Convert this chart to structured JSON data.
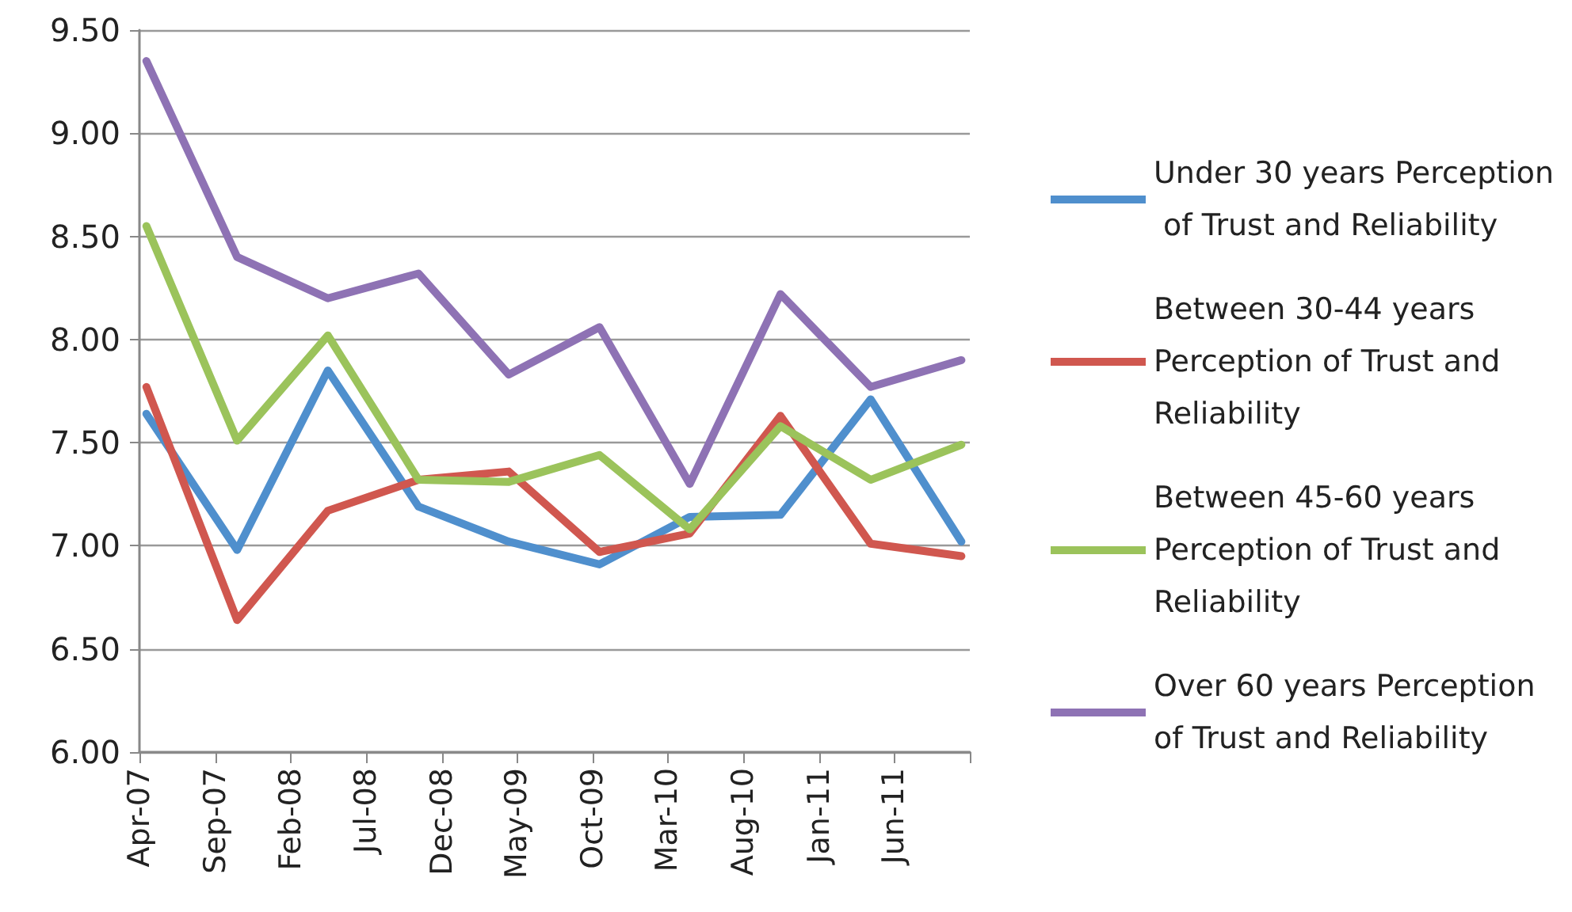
{
  "chart_data": {
    "type": "line",
    "x": [
      "2007-04-15",
      "2007-10-15",
      "2008-04-15",
      "2008-10-15",
      "2009-04-15",
      "2009-10-15",
      "2010-04-15",
      "2010-10-15",
      "2011-04-15",
      "2011-10-15"
    ],
    "xlim": [
      "2007-04-01",
      "2011-11-01"
    ],
    "xticks": [
      {
        "value": "2007-04-01",
        "label": "Apr-07"
      },
      {
        "value": "2007-09-01",
        "label": "Sep-07"
      },
      {
        "value": "2008-02-01",
        "label": "Feb-08"
      },
      {
        "value": "2008-07-01",
        "label": "Jul-08"
      },
      {
        "value": "2008-12-01",
        "label": "Dec-08"
      },
      {
        "value": "2009-05-01",
        "label": "May-09"
      },
      {
        "value": "2009-10-01",
        "label": "Oct-09"
      },
      {
        "value": "2010-03-01",
        "label": "Mar-10"
      },
      {
        "value": "2010-08-01",
        "label": "Aug-10"
      },
      {
        "value": "2011-01-01",
        "label": "Jan-11"
      },
      {
        "value": "2011-06-01",
        "label": "Jun-11"
      },
      {
        "value": "2011-11-01",
        "label": null
      }
    ],
    "ylim": [
      6,
      9.5
    ],
    "yticks": [
      {
        "value": 6,
        "label": "6.00"
      },
      {
        "value": 6.5,
        "label": "6.50"
      },
      {
        "value": 7,
        "label": "7.00"
      },
      {
        "value": 7.5,
        "label": "7.50"
      },
      {
        "value": 8,
        "label": "8.00"
      },
      {
        "value": 8.5,
        "label": "8.50"
      },
      {
        "value": 9,
        "label": "9.00"
      },
      {
        "value": 9.5,
        "label": "9.50"
      }
    ],
    "grid": "y",
    "legend": "right",
    "marker": "none",
    "line_style": "solid",
    "series": [
      {
        "name": "Under 30 years Perception of Trust and Reliability",
        "color": "#4f8fcd",
        "values": [
          7.64,
          6.98,
          7.85,
          7.19,
          7.02,
          6.91,
          7.14,
          7.15,
          7.71,
          7.02
        ]
      },
      {
        "name": "Between 30-44 years Perception of Trust and Reliability",
        "color": "#d0574f",
        "values": [
          7.77,
          6.64,
          7.17,
          7.32,
          7.36,
          6.97,
          7.06,
          7.63,
          7.01,
          6.95
        ]
      },
      {
        "name": "Between 45-60 years Perception of Trust and Reliability",
        "color": "#9bc35b",
        "values": [
          8.55,
          7.51,
          8.02,
          7.32,
          7.31,
          7.44,
          7.08,
          7.58,
          7.32,
          7.49
        ]
      },
      {
        "name": "Over 60 years Perception of Trust and Reliability",
        "color": "#8e72b4",
        "values": [
          9.35,
          8.4,
          8.2,
          8.32,
          7.83,
          8.06,
          7.3,
          8.22,
          7.77,
          7.9
        ]
      }
    ]
  }
}
